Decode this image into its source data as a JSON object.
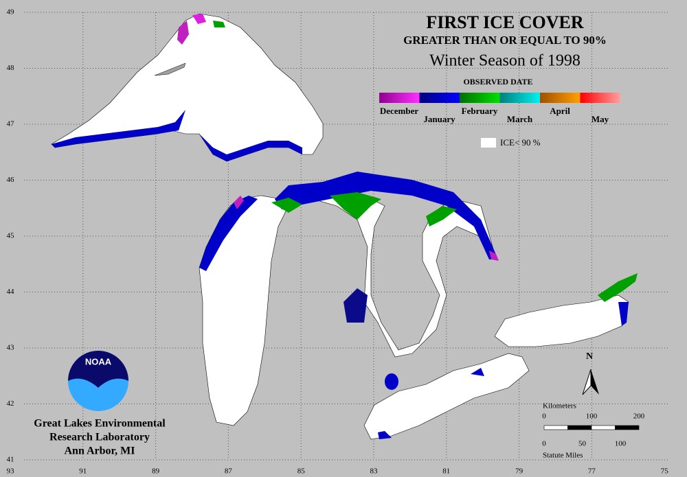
{
  "title": "FIRST ICE COVER",
  "subtitle": "GREATER THAN OR EQUAL TO 90%",
  "season": "Winter Season of 1998",
  "legend": {
    "title": "OBSERVED DATE",
    "months": [
      "December",
      "January",
      "February",
      "March",
      "April",
      "May"
    ],
    "ice_label": "ICE< 90 %"
  },
  "latitudes": [
    "49",
    "48",
    "47",
    "46",
    "45",
    "44",
    "43",
    "42",
    "41"
  ],
  "longitudes": [
    "93",
    "91",
    "89",
    "87",
    "85",
    "83",
    "81",
    "79",
    "77",
    "75"
  ],
  "north": "N",
  "scale": {
    "km_label": "Kilometers",
    "km_ticks": [
      "0",
      "100",
      "200"
    ],
    "mi_label": "Statute Miles",
    "mi_ticks": [
      "0",
      "50",
      "100"
    ]
  },
  "logo": "NOAA",
  "credit": [
    "Great Lakes Environmental",
    "Research Laboratory",
    "Ann Arbor, MI"
  ]
}
